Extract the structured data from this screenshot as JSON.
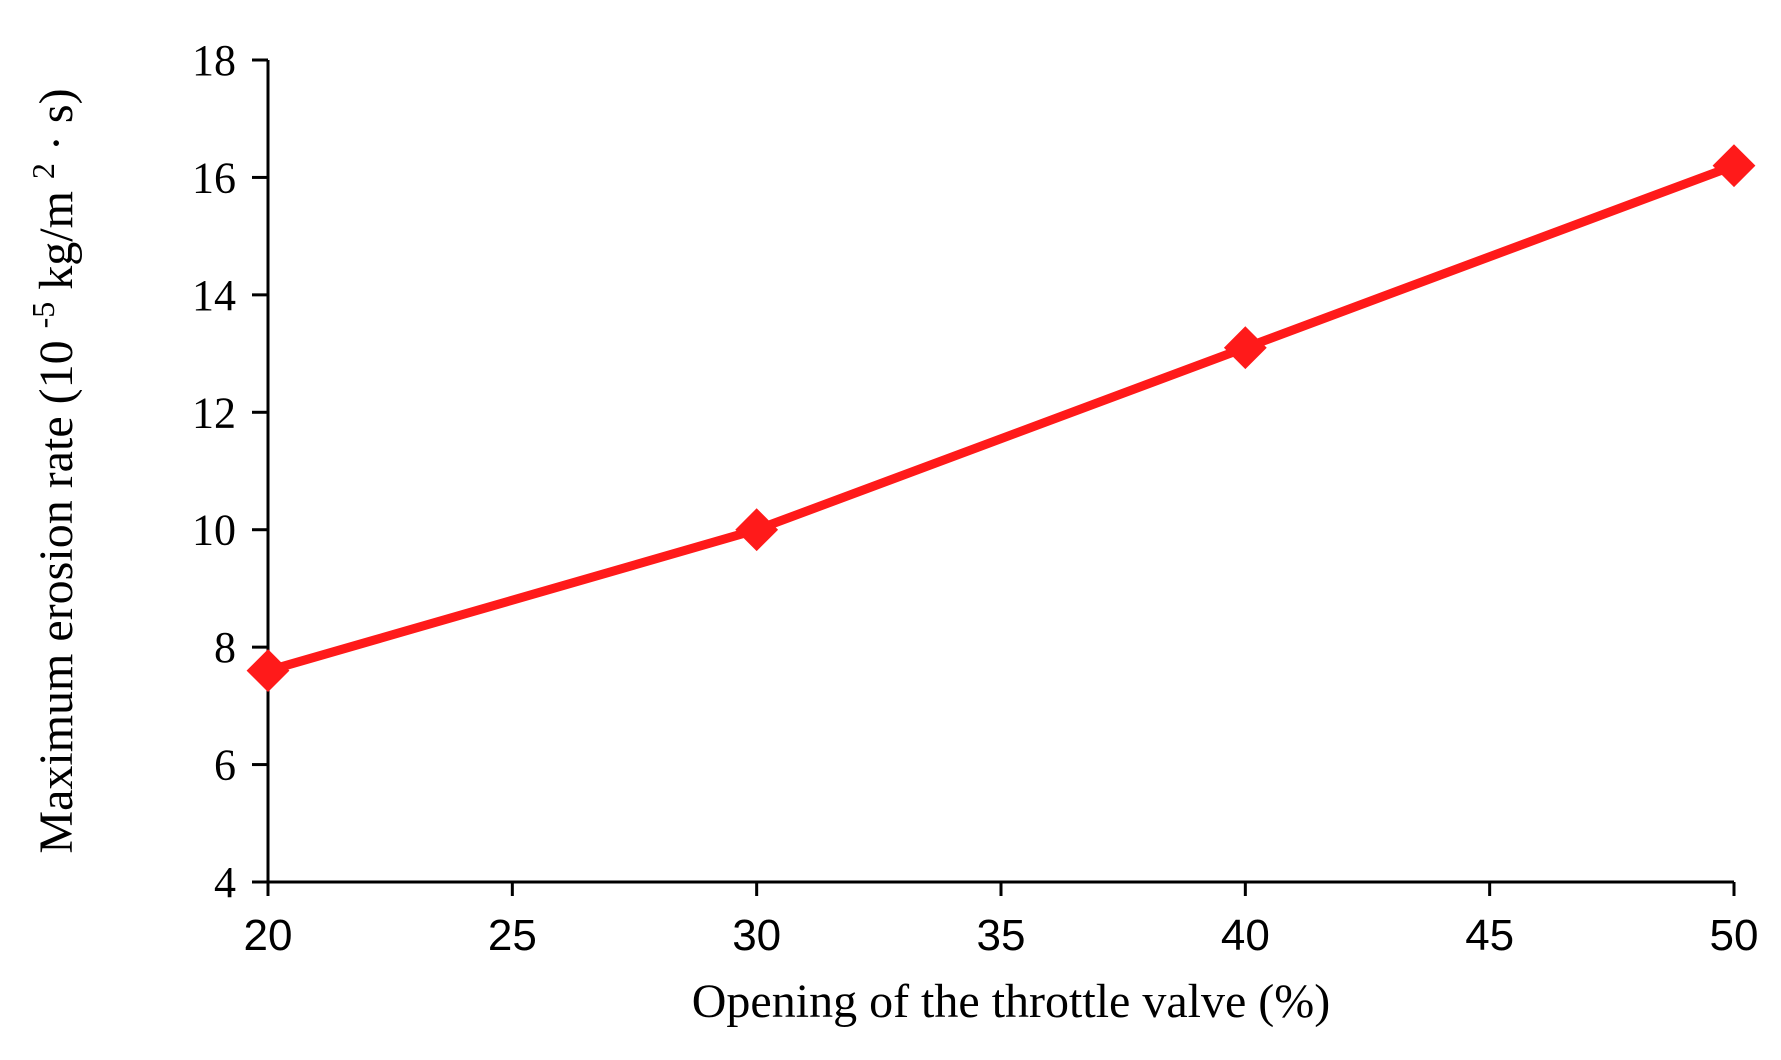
{
  "chart_data": {
    "type": "line",
    "title": "",
    "xlabel": "Opening of the throttle valve (%)",
    "ylabel": {
      "text": "Maximum erosion rate (10",
      "exp1": "-5",
      "unit": "kg/m",
      "exp2": "2",
      "tail": " · s)"
    },
    "xlim": [
      20,
      50
    ],
    "ylim": [
      4,
      18
    ],
    "x_ticks": [
      "20",
      "25",
      "30",
      "35",
      "40",
      "45",
      "50"
    ],
    "y_ticks": [
      "4",
      "6",
      "8",
      "10",
      "12",
      "14",
      "16",
      "18"
    ],
    "grid": false,
    "legend": "none",
    "series": [
      {
        "color": "#ff1a1a",
        "marker": "diamond",
        "x": [
          20,
          30,
          40,
          50
        ],
        "y": [
          7.6,
          10.0,
          13.1,
          16.2
        ]
      }
    ]
  }
}
